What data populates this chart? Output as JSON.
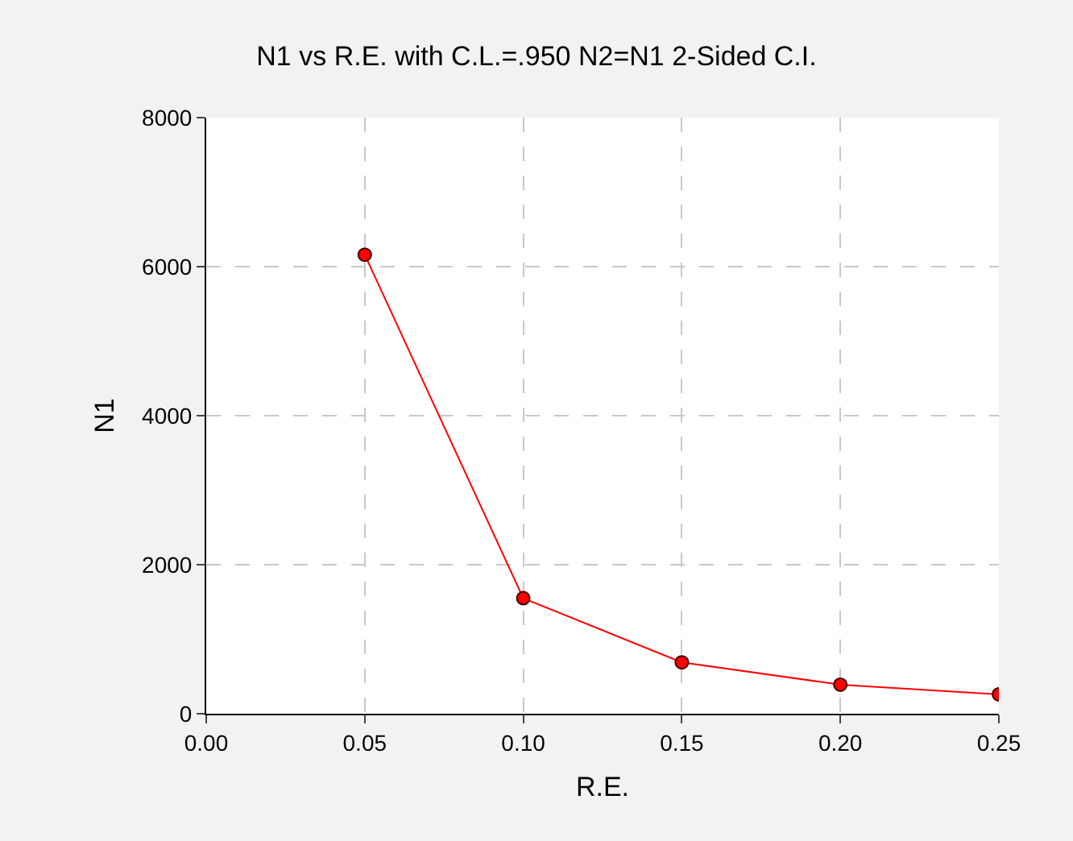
{
  "chart_data": {
    "type": "line",
    "title": "N1 vs R.E. with C.L.=.950 N2=N1 2-Sided C.I.",
    "xlabel": "R.E.",
    "ylabel": "N1",
    "x": [
      0.05,
      0.1,
      0.15,
      0.2,
      0.25
    ],
    "series": [
      {
        "color": "#ff0000",
        "values": [
          6160,
          1550,
          690,
          390,
          260
        ]
      }
    ],
    "xlim": [
      0,
      0.25
    ],
    "xticks": [
      {
        "value": 0,
        "label": "0.00"
      },
      {
        "value": 0.05,
        "label": "0.05"
      },
      {
        "value": 0.1,
        "label": "0.10"
      },
      {
        "value": 0.15,
        "label": "0.15"
      },
      {
        "value": 0.2,
        "label": "0.20"
      },
      {
        "value": 0.25,
        "label": "0.25"
      }
    ],
    "ylim": [
      0,
      8000
    ],
    "yticks": [
      0,
      2000,
      4000,
      6000,
      8000
    ],
    "grid": true,
    "marker": "circle",
    "line_style": "solid"
  }
}
